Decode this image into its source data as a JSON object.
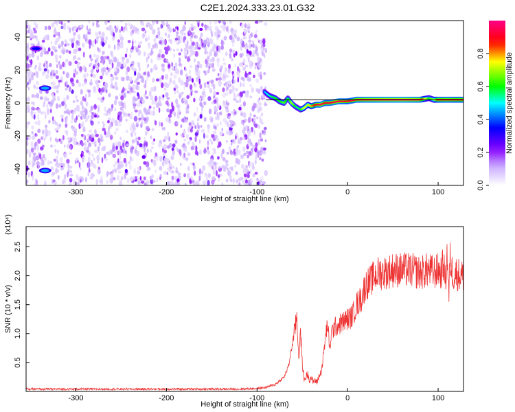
{
  "title": "C2E1.2024.333.23.01.G32",
  "chart_data": [
    {
      "type": "heatmap",
      "xlabel": "Height of straight line (km)",
      "ylabel": "Frequency (Hz)",
      "xlim": [
        -355,
        128
      ],
      "ylim": [
        -50,
        50
      ],
      "xticks": [
        -300,
        -200,
        -100,
        0,
        100
      ],
      "yticks": [
        -40,
        -20,
        0,
        20,
        40
      ],
      "colorbar": {
        "label": "Normalized spectral amplitude",
        "range": [
          0.0,
          1.0
        ],
        "ticks": [
          0.0,
          0.2,
          0.4,
          0.6,
          0.8
        ],
        "colors": [
          "#ffffff",
          "#8800ff",
          "#0000ff",
          "#00ffff",
          "#00ff00",
          "#ffff00",
          "#ff0000",
          "#ff0088"
        ]
      },
      "noise_region": {
        "x": [
          -355,
          -90
        ],
        "y": [
          -50,
          50
        ],
        "amplitude": [
          0.05,
          0.25
        ]
      },
      "signal_track": {
        "x": [
          -92,
          -88,
          -85,
          -80,
          -75,
          -70,
          -66,
          -62,
          -58,
          -55,
          -52,
          -48,
          -44,
          -40,
          -35,
          -30,
          -25,
          -20,
          -10,
          0,
          10,
          20,
          40,
          60,
          80,
          90,
          95,
          100,
          110,
          120,
          128
        ],
        "y": [
          7,
          5,
          4,
          3,
          1,
          0,
          3,
          0,
          -2,
          -3,
          -4,
          -3,
          -1,
          -2,
          -1,
          -1,
          0,
          0,
          1,
          1,
          2,
          2,
          2,
          2,
          2,
          3,
          2,
          2,
          2,
          2,
          2
        ],
        "amplitude": [
          0.45,
          0.5,
          0.55,
          0.6,
          0.6,
          0.65,
          0.55,
          0.7,
          0.6,
          0.55,
          0.6,
          0.75,
          0.7,
          0.8,
          0.9,
          0.95,
          0.9,
          0.92,
          0.95,
          0.9,
          0.92,
          0.95,
          0.97,
          0.98,
          0.95,
          0.6,
          0.7,
          0.9,
          0.92,
          0.9,
          0.9
        ]
      },
      "reference_line": {
        "y": 2,
        "x": [
          -90,
          128
        ]
      },
      "blobs": [
        {
          "x": -334,
          "y": 9,
          "amplitude": 0.3
        },
        {
          "x": -334,
          "y": -41,
          "amplitude": 0.3
        },
        {
          "x": -344,
          "y": 33,
          "amplitude": 0.2
        }
      ]
    },
    {
      "type": "line",
      "xlabel": "Height of straight line (km)",
      "ylabel": "SNR (10 * v/v)",
      "yscale_label": "(x10⁴)",
      "xlim": [
        -355,
        128
      ],
      "ylim": [
        0,
        2.85
      ],
      "xticks": [
        -300,
        -200,
        -100,
        0,
        100
      ],
      "yticks": [
        0.5,
        1.0,
        1.5,
        2.0,
        2.5
      ],
      "series": [
        {
          "color": "#ee3333",
          "x": [
            -355,
            -120,
            -100,
            -90,
            -80,
            -70,
            -65,
            -60,
            -56,
            -54,
            -52,
            -50,
            -48,
            -46,
            -44,
            -42,
            -40,
            -38,
            -36,
            -34,
            -32,
            -30,
            -28,
            -25,
            -22,
            -20,
            -18,
            -15,
            -10,
            -5,
            0,
            5,
            10,
            15,
            20,
            25,
            30,
            35,
            40,
            50,
            60,
            70,
            80,
            90,
            95,
            100,
            103,
            106,
            108,
            110,
            112,
            113,
            115,
            118,
            120,
            125,
            128
          ],
          "y": [
            0.04,
            0.04,
            0.05,
            0.07,
            0.12,
            0.25,
            0.45,
            0.9,
            1.3,
            0.6,
            1.0,
            0.5,
            0.2,
            0.25,
            0.3,
            0.2,
            0.25,
            0.15,
            0.2,
            0.15,
            0.25,
            0.3,
            0.45,
            0.85,
            1.2,
            0.7,
            1.0,
            1.1,
            1.15,
            1.2,
            1.25,
            1.3,
            1.5,
            1.6,
            1.85,
            1.9,
            2.0,
            2.05,
            2.05,
            2.1,
            2.1,
            2.1,
            2.05,
            2.1,
            2.05,
            2.1,
            2.05,
            2.2,
            1.9,
            2.4,
            1.6,
            2.3,
            2.1,
            2.0,
            2.05,
            2.0,
            2.0
          ]
        }
      ]
    }
  ]
}
